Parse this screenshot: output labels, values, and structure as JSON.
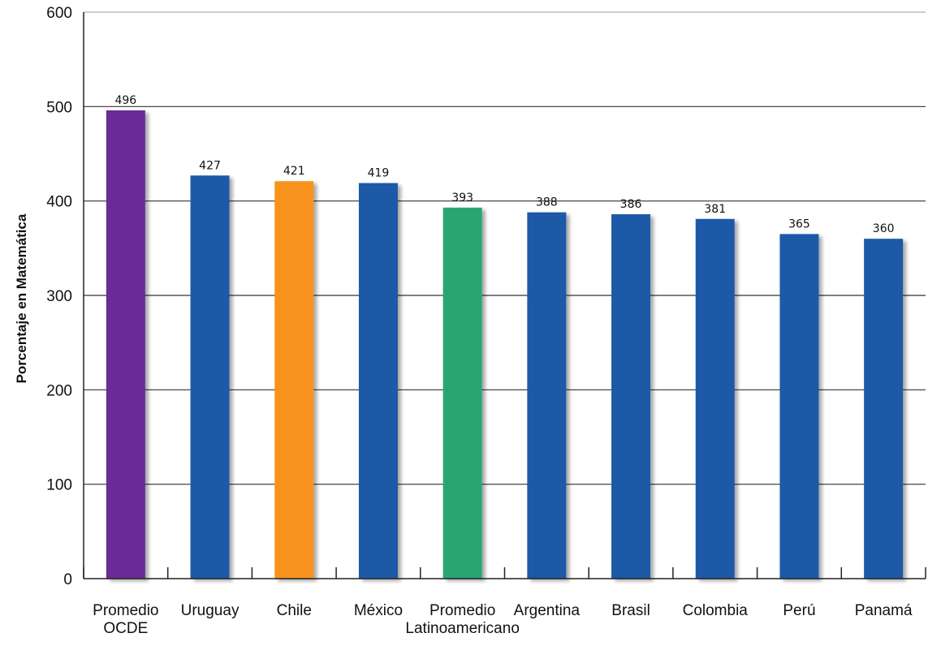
{
  "chart_data": {
    "type": "bar",
    "title": "",
    "xlabel": "",
    "ylabel": "Porcentaje en Matemática",
    "ylim": [
      0,
      600
    ],
    "yticks": [
      0,
      100,
      200,
      300,
      400,
      500,
      600
    ],
    "grid": true,
    "legend": "none",
    "categories": [
      [
        "Promedio",
        "OCDE"
      ],
      [
        "Uruguay"
      ],
      [
        "Chile"
      ],
      [
        "México"
      ],
      [
        "Promedio",
        "Latinoamericano"
      ],
      [
        "Argentina"
      ],
      [
        "Brasil"
      ],
      [
        "Colombia"
      ],
      [
        "Perú"
      ],
      [
        "Panamá"
      ]
    ],
    "values": [
      496,
      427,
      421,
      419,
      393,
      388,
      386,
      381,
      365,
      360
    ],
    "colors": [
      "#6a2a98",
      "#1f5aa8",
      "#f7931e",
      "#1f5aa8",
      "#2aa572",
      "#1f5aa8",
      "#1f5aa8",
      "#1f5aa8",
      "#1f5aa8",
      "#1f5aa8"
    ]
  }
}
